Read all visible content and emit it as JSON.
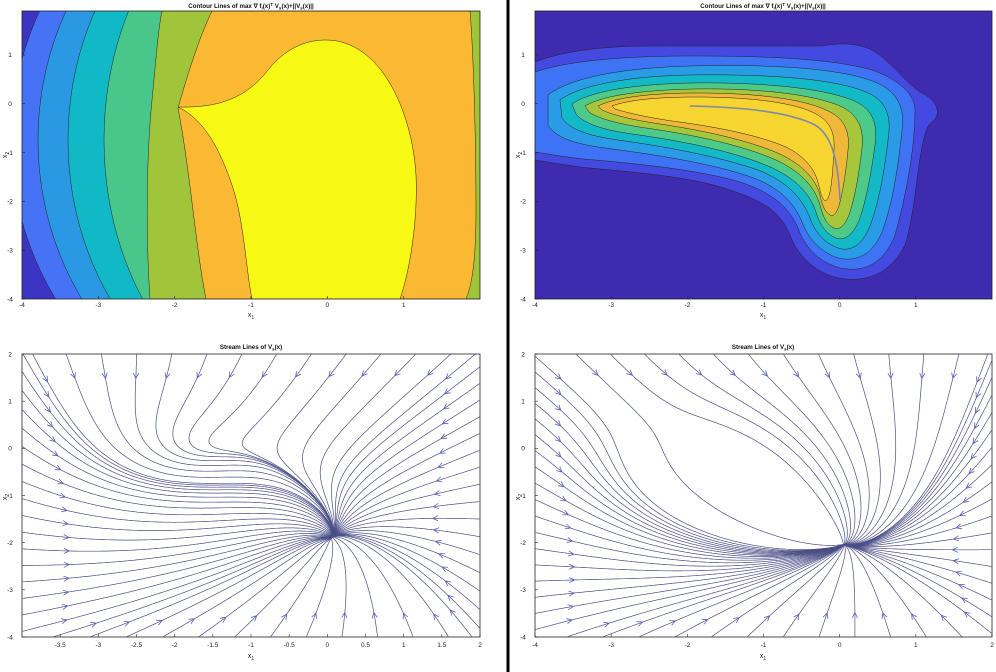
{
  "chart_data": [
    {
      "type": "contour",
      "title": {
        "p1": "Contour Lines of max ",
        "p2": " f",
        "s1": "i",
        "p3": "(x)",
        "sup": "T",
        "p4": " V",
        "s2": "s",
        "p5": "(x)+||V",
        "s3": "s",
        "p6": "(x)||"
      },
      "xlabel": {
        "base": "x",
        "sub": "1"
      },
      "ylabel": {
        "base": "x",
        "sub": "2"
      },
      "xlim": [
        -4,
        2
      ],
      "ylim": [
        -4,
        1.9
      ],
      "xticks": [
        "-4",
        "-3",
        "-2",
        "-1",
        "0",
        "1"
      ],
      "yticks": [
        "1",
        "0",
        "-1",
        "-2",
        "-3",
        "-4"
      ],
      "colors": [
        "#3c34c2",
        "#4673f5",
        "#2a98e3",
        "#11b9c6",
        "#49c78b",
        "#a0c43a",
        "#fbb832",
        "#f8f815"
      ]
    },
    {
      "type": "contour",
      "title": {
        "p1": "Contour Lines of max ",
        "p2": " f",
        "s1": "i",
        "p3": "(x)",
        "sup": "T",
        "p4": " V",
        "s2": "s",
        "p5": "(x)+||V",
        "s3": "s",
        "p6": "(x)||"
      },
      "xlabel": {
        "base": "x",
        "sub": "1"
      },
      "ylabel": {
        "base": "x",
        "sub": "2"
      },
      "xlim": [
        -4,
        2
      ],
      "ylim": [
        -4,
        1.9
      ],
      "xticks": [
        "-4",
        "-3",
        "-2",
        "-1",
        "0",
        "1"
      ],
      "yticks": [
        "1",
        "0",
        "-1",
        "-2",
        "-3",
        "-4"
      ],
      "colors": [
        "#3e2bb0",
        "#4449e0",
        "#3f73f6",
        "#2a9be6",
        "#14b9c7",
        "#4dc98a",
        "#a6c63c",
        "#f0b839",
        "#f6d530"
      ]
    },
    {
      "type": "streamline",
      "title": {
        "p1": "Stream Lines of V",
        "s1": "s",
        "p2": "(x)"
      },
      "xlabel": {
        "base": "x",
        "sub": "1"
      },
      "ylabel": {
        "base": "x",
        "sub": "2"
      },
      "xlim": [
        -4,
        2
      ],
      "ylim": [
        -4,
        2
      ],
      "xticks": [
        "-3.5",
        "-3",
        "-2.5",
        "-2",
        "-1.5",
        "-1",
        "-0.5",
        "0",
        "0.5",
        "1",
        "1.5",
        "2"
      ],
      "yticks": [
        "2",
        "1",
        "0",
        "-1",
        "-2",
        "-3",
        "-4"
      ],
      "line_color": "#4a4f86"
    },
    {
      "type": "streamline",
      "title": {
        "p1": "Stream Lines of V",
        "s1": "s",
        "p2": "(x)"
      },
      "xlabel": {
        "base": "x",
        "sub": "1"
      },
      "ylabel": {
        "base": "x",
        "sub": "2"
      },
      "xlim": [
        -4,
        2
      ],
      "ylim": [
        -4,
        2
      ],
      "xticks": [
        "-4",
        "-3",
        "-2",
        "-1",
        "0",
        "1",
        "2"
      ],
      "yticks": [
        "2",
        "1",
        "0",
        "-1",
        "-2",
        "-3",
        "-4"
      ],
      "line_color": "#4a4f86"
    }
  ]
}
